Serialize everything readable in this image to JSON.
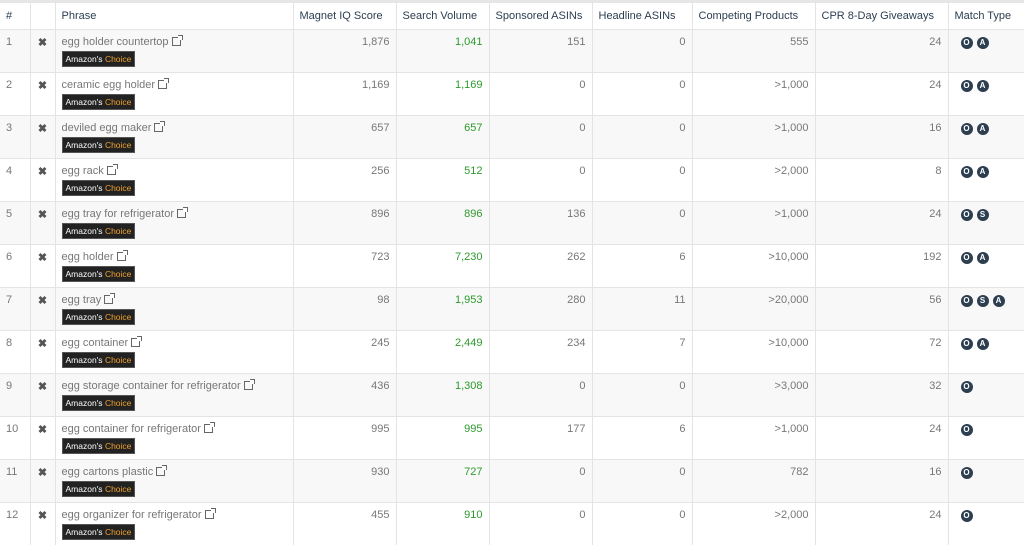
{
  "headers": [
    "#",
    "",
    "Phrase",
    "Magnet IQ Score",
    "Search Volume",
    "Sponsored ASINs",
    "Headline ASINs",
    "Competing Products",
    "CPR 8-Day Giveaways",
    "Match Type"
  ],
  "badge": {
    "prefix": "Amazon's",
    "suffix": "Choice"
  },
  "colors": {
    "green": "#2e9a2e",
    "badge_bg": "#222222",
    "badge_accent": "#f0a030",
    "match_circle": "#2c3e50"
  },
  "rows": [
    {
      "n": "1",
      "phrase": "egg holder countertop",
      "iq": "1,876",
      "sv": "1,041",
      "sp": "151",
      "hl": "0",
      "cp": "555",
      "cpr": "24",
      "mt": [
        "O",
        "A"
      ]
    },
    {
      "n": "2",
      "phrase": "ceramic egg holder",
      "iq": "1,169",
      "sv": "1,169",
      "sp": "0",
      "hl": "0",
      "cp": ">1,000",
      "cpr": "24",
      "mt": [
        "O",
        "A"
      ]
    },
    {
      "n": "3",
      "phrase": "deviled egg maker",
      "iq": "657",
      "sv": "657",
      "sp": "0",
      "hl": "0",
      "cp": ">1,000",
      "cpr": "16",
      "mt": [
        "O",
        "A"
      ]
    },
    {
      "n": "4",
      "phrase": "egg rack",
      "iq": "256",
      "sv": "512",
      "sp": "0",
      "hl": "0",
      "cp": ">2,000",
      "cpr": "8",
      "mt": [
        "O",
        "A"
      ]
    },
    {
      "n": "5",
      "phrase": "egg tray for refrigerator",
      "iq": "896",
      "sv": "896",
      "sp": "136",
      "hl": "0",
      "cp": ">1,000",
      "cpr": "24",
      "mt": [
        "O",
        "S"
      ]
    },
    {
      "n": "6",
      "phrase": "egg holder",
      "iq": "723",
      "sv": "7,230",
      "sp": "262",
      "hl": "6",
      "cp": ">10,000",
      "cpr": "192",
      "mt": [
        "O",
        "A"
      ]
    },
    {
      "n": "7",
      "phrase": "egg tray",
      "iq": "98",
      "sv": "1,953",
      "sp": "280",
      "hl": "11",
      "cp": ">20,000",
      "cpr": "56",
      "mt": [
        "O",
        "S",
        "A"
      ]
    },
    {
      "n": "8",
      "phrase": "egg container",
      "iq": "245",
      "sv": "2,449",
      "sp": "234",
      "hl": "7",
      "cp": ">10,000",
      "cpr": "72",
      "mt": [
        "O",
        "A"
      ]
    },
    {
      "n": "9",
      "phrase": "egg storage container for refrigerator",
      "iq": "436",
      "sv": "1,308",
      "sp": "0",
      "hl": "0",
      "cp": ">3,000",
      "cpr": "32",
      "mt": [
        "O"
      ]
    },
    {
      "n": "10",
      "phrase": "egg container for refrigerator",
      "iq": "995",
      "sv": "995",
      "sp": "177",
      "hl": "6",
      "cp": ">1,000",
      "cpr": "24",
      "mt": [
        "O"
      ]
    },
    {
      "n": "11",
      "phrase": "egg cartons plastic",
      "iq": "930",
      "sv": "727",
      "sp": "0",
      "hl": "0",
      "cp": "782",
      "cpr": "16",
      "mt": [
        "O"
      ]
    },
    {
      "n": "12",
      "phrase": "egg organizer for refrigerator",
      "iq": "455",
      "sv": "910",
      "sp": "0",
      "hl": "0",
      "cp": ">2,000",
      "cpr": "24",
      "mt": [
        "O"
      ]
    }
  ]
}
